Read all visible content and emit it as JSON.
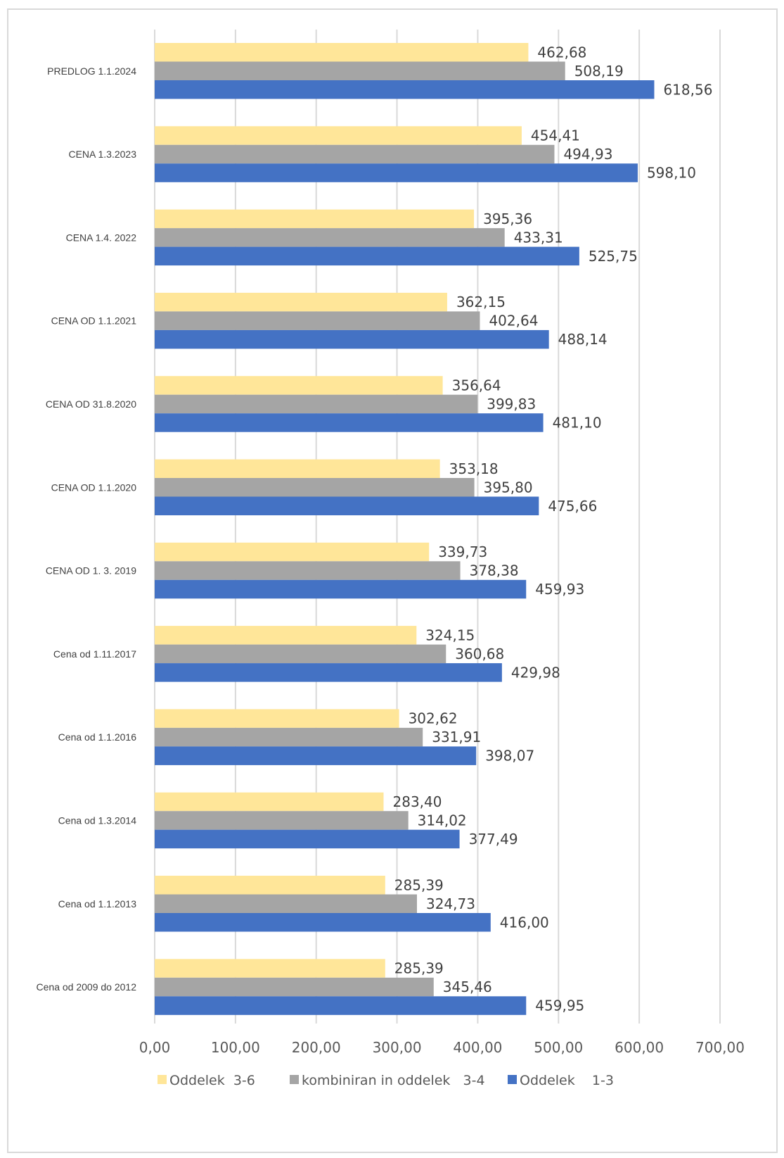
{
  "chart_data": {
    "type": "bar",
    "orientation": "horizontal",
    "categories": [
      "PREDLOG 1.1.2024",
      "CENA 1.3.2023",
      "CENA 1.4. 2022",
      "CENA OD 1.1.2021",
      "CENA OD 31.8.2020",
      "CENA OD 1.1.2020",
      "CENA OD 1. 3. 2019",
      "Cena od 1.11.2017",
      "Cena od 1.1.2016",
      "Cena od  1.3.2014",
      "Cena od 1.1.2013",
      "Cena od 2009  do 2012"
    ],
    "series": [
      {
        "name": "Oddelek  3-6",
        "color": "#ffe699",
        "values": [
          462.68,
          454.41,
          395.36,
          362.15,
          356.64,
          353.18,
          339.73,
          324.15,
          302.62,
          283.4,
          285.39,
          285.39
        ],
        "labels": [
          "462,68",
          "454,41",
          "395,36",
          "362,15",
          "356,64",
          "353,18",
          "339,73",
          "324,15",
          "302,62",
          "283,40",
          "285,39",
          "285,39"
        ]
      },
      {
        "name": "kombiniran in oddelek   3-4",
        "color": "#a5a5a5",
        "values": [
          508.19,
          494.93,
          433.31,
          402.64,
          399.83,
          395.8,
          378.38,
          360.68,
          331.91,
          314.02,
          324.73,
          345.46
        ],
        "labels": [
          "508,19",
          "494,93",
          "433,31",
          "402,64",
          "399,83",
          "395,80",
          "378,38",
          "360,68",
          "331,91",
          "314,02",
          "324,73",
          "345,46"
        ]
      },
      {
        "name": "Oddelek    1-3",
        "color": "#4472c4",
        "values": [
          618.56,
          598.1,
          525.75,
          488.14,
          481.1,
          475.66,
          459.93,
          429.98,
          398.07,
          377.49,
          416.0,
          459.95
        ],
        "labels": [
          "618,56",
          "598,10",
          "525,75",
          "488,14",
          "481,10",
          "475,66",
          "459,93",
          "429,98",
          "398,07",
          "377,49",
          "416,00",
          "459,95"
        ]
      }
    ],
    "xlim": [
      0,
      700
    ],
    "x_ticks": [
      0,
      100,
      200,
      300,
      400,
      500,
      600,
      700
    ],
    "x_tick_labels": [
      "0,00",
      "100,00",
      "200,00",
      "300,00",
      "400,00",
      "500,00",
      "600,00",
      "700,00"
    ],
    "grid": true,
    "legend_position": "bottom",
    "gridline_color": "#d9d9d9"
  }
}
